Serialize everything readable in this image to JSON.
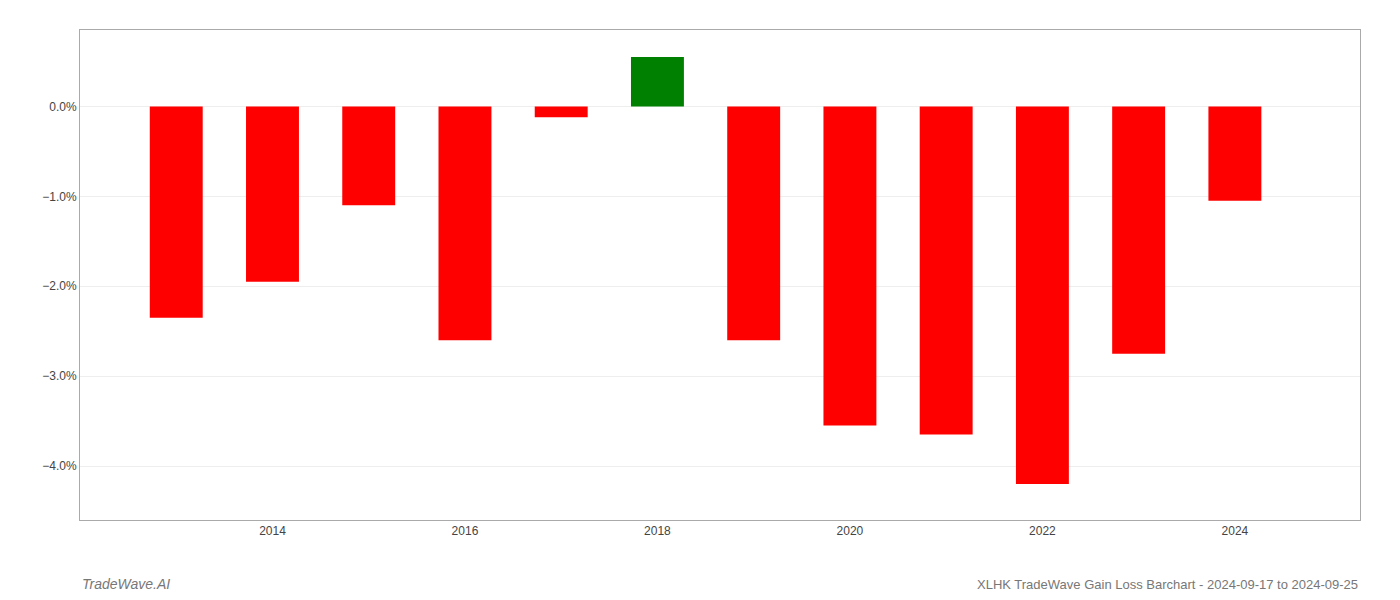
{
  "chart_data": {
    "type": "bar",
    "title": "XLHK TradeWave Gain Loss Barchart - 2024-09-17 to 2024-09-25",
    "annotations": [
      "TradeWave.AI"
    ],
    "x": [
      2013,
      2014,
      2015,
      2016,
      2017,
      2018,
      2019,
      2020,
      2021,
      2022,
      2023,
      2024
    ],
    "values": [
      -2.35,
      -1.95,
      -1.1,
      -2.6,
      -0.12,
      0.55,
      -2.6,
      -3.55,
      -3.65,
      -4.2,
      -2.75,
      -1.05
    ],
    "colors": [
      "#ff0000",
      "#ff0000",
      "#ff0000",
      "#ff0000",
      "#ff0000",
      "#008000",
      "#ff0000",
      "#ff0000",
      "#ff0000",
      "#ff0000",
      "#ff0000",
      "#ff0000"
    ],
    "xlim": [
      2012.0,
      2025.3
    ],
    "xticks": [
      2014,
      2016,
      2018,
      2020,
      2022,
      2024
    ],
    "ylim": [
      -4.6,
      0.85
    ],
    "yticks": [
      {
        "value": 0.0,
        "label": "0.0%"
      },
      {
        "value": -1.0,
        "label": "−1.0%"
      },
      {
        "value": -2.0,
        "label": "−2.0%"
      },
      {
        "value": -3.0,
        "label": "−3.0%"
      },
      {
        "value": -4.0,
        "label": "−4.0%"
      }
    ],
    "grid": true
  }
}
